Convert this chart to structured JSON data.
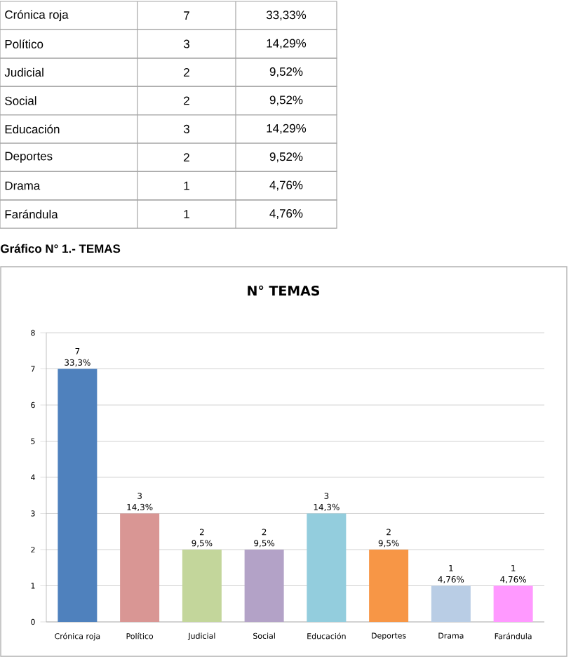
{
  "chart_data": {
    "type": "bar",
    "title": "N° TEMAS",
    "categories": [
      "Crónica roja",
      "Político",
      "Judicial",
      "Social",
      "Educación",
      "Deportes",
      "Drama",
      "Farándula"
    ],
    "values": [
      7,
      3,
      2,
      2,
      3,
      2,
      1,
      1
    ],
    "colors": [
      "#4f81bd",
      "#d99694",
      "#c3d69b",
      "#b3a2c7",
      "#93cddd",
      "#f79646",
      "#b9cde5",
      "#ff99ff"
    ],
    "ylim": [
      0,
      8
    ],
    "yticks": [
      0,
      1,
      2,
      3,
      4,
      5,
      6,
      7,
      8
    ],
    "grid": "y",
    "value_labels": [
      "7",
      "3",
      "2",
      "2",
      "3",
      "2",
      "1",
      "1"
    ],
    "annotations": [
      "Crónica roja",
      "7",
      "33,33%",
      "Político",
      "3",
      "14,29%",
      "Judicial",
      "2",
      "9,52%",
      "Social",
      "2",
      "9,52%",
      "Educación",
      "3",
      "14,29%",
      "Deportes",
      "2",
      "9,52%",
      "Drama",
      "1",
      "4,76%",
      "Farándula",
      "1",
      "4,76%",
      "Gráfico N° 1.- TEMAS",
      {
        "text": "33,3%",
        "x": "Crónica roja",
        "y": 7
      },
      {
        "text": "14,3%",
        "x": "Político",
        "y": 3
      },
      {
        "text": "9,5%",
        "x": "Judicial",
        "y": 2
      },
      {
        "text": "9,5%",
        "x": "Social",
        "y": 2
      },
      {
        "text": "14,3%",
        "x": "Educación",
        "y": 3
      },
      {
        "text": "9,5%",
        "x": "Deportes",
        "y": 2
      },
      {
        "text": "4,76%",
        "x": "Drama",
        "y": 1
      },
      {
        "text": "4,76%",
        "x": "Farándula",
        "y": 1
      }
    ]
  }
}
